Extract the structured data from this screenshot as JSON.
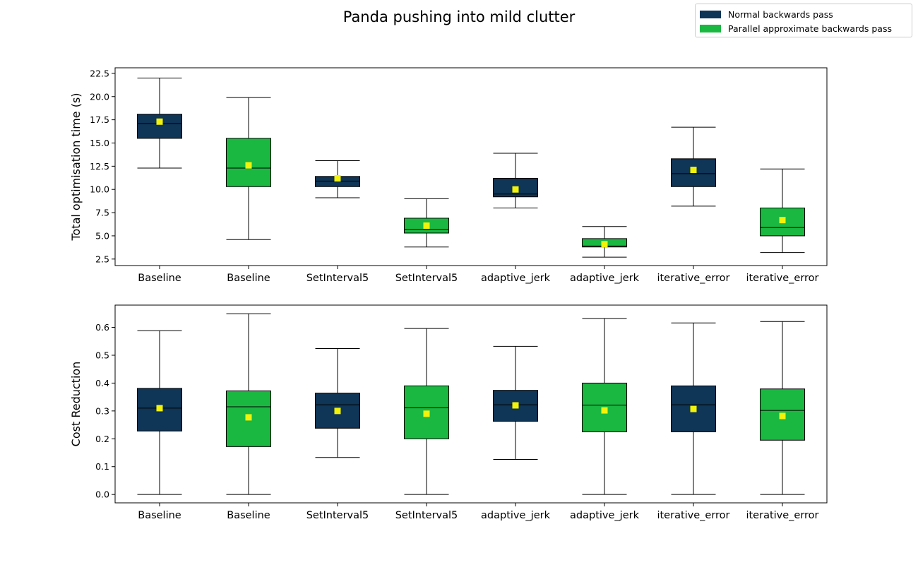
{
  "figure": {
    "title": "Panda pushing into mild clutter",
    "legend": [
      {
        "label": "Normal backwards pass",
        "color": "#0f3557"
      },
      {
        "label": "Parallel approximate backwards pass",
        "color": "#1ab841"
      }
    ],
    "mean_marker_color": "#f2f20a"
  },
  "chart_data": [
    {
      "type": "box",
      "title": "",
      "xlabel": "",
      "ylabel": "Total optimisation time (s)",
      "ylim": [
        1.8,
        23.1
      ],
      "yticks": [
        2.5,
        5.0,
        7.5,
        10.0,
        12.5,
        15.0,
        17.5,
        20.0,
        22.5
      ],
      "ytick_labels": [
        "2.5",
        "5.0",
        "7.5",
        "10.0",
        "12.5",
        "15.0",
        "17.5",
        "20.0",
        "22.5"
      ],
      "categories": [
        "Baseline",
        "Baseline",
        "SetInterval5",
        "SetInterval5",
        "adaptive_jerk",
        "adaptive_jerk",
        "iterative_error",
        "iterative_error"
      ],
      "series_index": [
        0,
        1,
        0,
        1,
        0,
        1,
        0,
        1
      ],
      "boxes": [
        {
          "whisker_low": 12.3,
          "q1": 15.5,
          "median": 17.1,
          "q3": 18.1,
          "whisker_high": 22.0,
          "mean": 17.3
        },
        {
          "whisker_low": 4.6,
          "q1": 10.3,
          "median": 12.3,
          "q3": 15.5,
          "whisker_high": 19.9,
          "mean": 12.6
        },
        {
          "whisker_low": 9.1,
          "q1": 10.3,
          "median": 10.9,
          "q3": 11.4,
          "whisker_high": 13.1,
          "mean": 11.2
        },
        {
          "whisker_low": 3.8,
          "q1": 5.3,
          "median": 5.7,
          "q3": 6.9,
          "whisker_high": 9.0,
          "mean": 6.1
        },
        {
          "whisker_low": 8.0,
          "q1": 9.2,
          "median": 9.5,
          "q3": 11.2,
          "whisker_high": 13.9,
          "mean": 10.0
        },
        {
          "whisker_low": 2.7,
          "q1": 3.8,
          "median": 3.9,
          "q3": 4.7,
          "whisker_high": 6.0,
          "mean": 4.1
        },
        {
          "whisker_low": 8.2,
          "q1": 10.3,
          "median": 11.7,
          "q3": 13.3,
          "whisker_high": 16.7,
          "mean": 12.1
        },
        {
          "whisker_low": 3.2,
          "q1": 5.0,
          "median": 5.9,
          "q3": 8.0,
          "whisker_high": 12.2,
          "mean": 6.7
        }
      ]
    },
    {
      "type": "box",
      "title": "",
      "xlabel": "",
      "ylabel": "Cost Reduction",
      "ylim": [
        -0.03,
        0.68
      ],
      "yticks": [
        0.0,
        0.1,
        0.2,
        0.3,
        0.4,
        0.5,
        0.6
      ],
      "ytick_labels": [
        "0.0",
        "0.1",
        "0.2",
        "0.3",
        "0.4",
        "0.5",
        "0.6"
      ],
      "categories": [
        "Baseline",
        "Baseline",
        "SetInterval5",
        "SetInterval5",
        "adaptive_jerk",
        "adaptive_jerk",
        "iterative_error",
        "iterative_error"
      ],
      "series_index": [
        0,
        1,
        0,
        1,
        0,
        1,
        0,
        1
      ],
      "boxes": [
        {
          "whisker_low": 0.0,
          "q1": 0.228,
          "median": 0.31,
          "q3": 0.381,
          "whisker_high": 0.588,
          "mean": 0.31
        },
        {
          "whisker_low": 0.0,
          "q1": 0.172,
          "median": 0.315,
          "q3": 0.372,
          "whisker_high": 0.649,
          "mean": 0.277
        },
        {
          "whisker_low": 0.133,
          "q1": 0.238,
          "median": 0.322,
          "q3": 0.364,
          "whisker_high": 0.524,
          "mean": 0.3
        },
        {
          "whisker_low": 0.0,
          "q1": 0.2,
          "median": 0.311,
          "q3": 0.39,
          "whisker_high": 0.596,
          "mean": 0.29
        },
        {
          "whisker_low": 0.126,
          "q1": 0.263,
          "median": 0.322,
          "q3": 0.374,
          "whisker_high": 0.532,
          "mean": 0.32
        },
        {
          "whisker_low": 0.0,
          "q1": 0.225,
          "median": 0.321,
          "q3": 0.4,
          "whisker_high": 0.632,
          "mean": 0.302
        },
        {
          "whisker_low": 0.0,
          "q1": 0.225,
          "median": 0.322,
          "q3": 0.39,
          "whisker_high": 0.616,
          "mean": 0.307
        },
        {
          "whisker_low": 0.0,
          "q1": 0.195,
          "median": 0.302,
          "q3": 0.379,
          "whisker_high": 0.621,
          "mean": 0.282
        }
      ]
    }
  ]
}
